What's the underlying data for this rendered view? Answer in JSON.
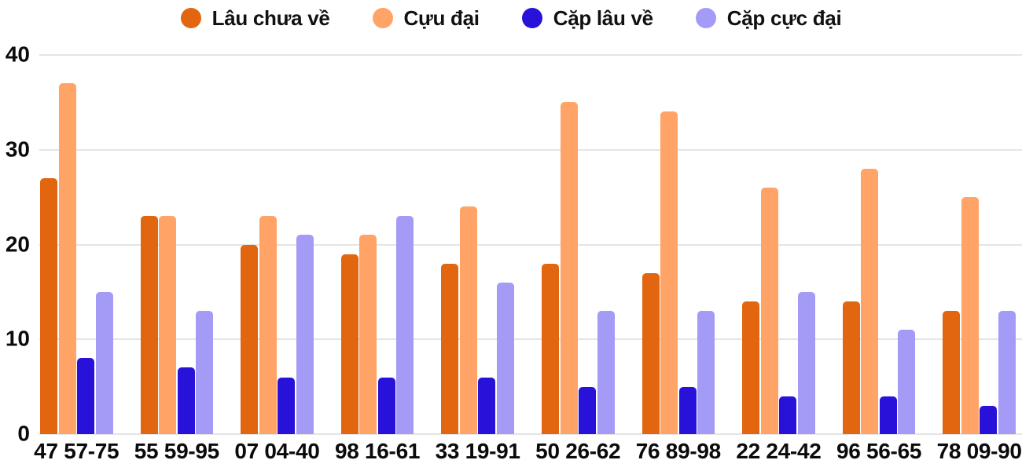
{
  "chart_data": {
    "type": "bar",
    "title": "",
    "categories": [
      "47 57-75",
      "55 59-95",
      "07 04-40",
      "98 16-61",
      "33 19-91",
      "50 26-62",
      "76 89-98",
      "22 24-42",
      "96 56-65",
      "78 09-90"
    ],
    "series": [
      {
        "name": "Lâu chưa về",
        "color": "#E2650F",
        "values": [
          27,
          23,
          20,
          19,
          18,
          18,
          17,
          14,
          14,
          13
        ]
      },
      {
        "name": "Cựu đại",
        "color": "#FFA366",
        "values": [
          37,
          23,
          23,
          21,
          24,
          35,
          34,
          26,
          28,
          25
        ]
      },
      {
        "name": "Cặp lâu về",
        "color": "#2812D9",
        "values": [
          8,
          7,
          6,
          6,
          6,
          5,
          5,
          4,
          4,
          3
        ]
      },
      {
        "name": "Cặp cực đại",
        "color": "#A39BF6",
        "values": [
          15,
          13,
          21,
          23,
          16,
          13,
          13,
          15,
          11,
          13
        ]
      }
    ],
    "xlabel": "",
    "ylabel": "",
    "ylim": [
      0,
      40
    ],
    "yticks": [
      0,
      10,
      20,
      30,
      40
    ],
    "grid": "horizontal",
    "legend_position": "top",
    "axis_text_color": "#0b0b0b",
    "gridline_color": "#e5e5e5",
    "background_color": "#ffffff"
  }
}
